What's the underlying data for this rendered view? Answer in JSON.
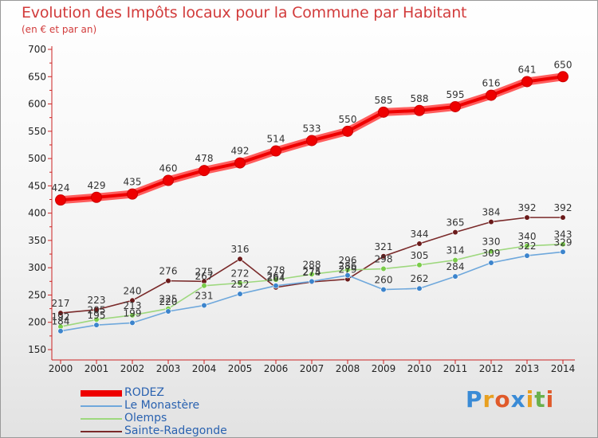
{
  "title": "Evolution des Impôts locaux pour la Commune par Habitant",
  "subtitle": "(en € et par an)",
  "logo": {
    "letters": [
      "P",
      "r",
      "o",
      "x",
      "i",
      "t",
      "i"
    ],
    "colors": [
      "#3a8bd6",
      "#e8a020",
      "#e05a2a",
      "#3a8bd6",
      "#e8a020",
      "#6ab04c",
      "#e05a2a"
    ]
  },
  "chart_data": {
    "type": "line",
    "title": "Evolution des Impôts locaux pour la Commune par Habitant",
    "subtitle": "(en € et par an)",
    "xlabel": "",
    "ylabel": "",
    "x": [
      "2000",
      "2001",
      "2002",
      "2003",
      "2004",
      "2005",
      "2006",
      "2007",
      "2008",
      "2009",
      "2010",
      "2011",
      "2012",
      "2013",
      "2014"
    ],
    "ylim": [
      150,
      700
    ],
    "yticks": [
      "150",
      "200",
      "250",
      "300",
      "350",
      "400",
      "450",
      "500",
      "550",
      "600",
      "650",
      "700"
    ],
    "grid": false,
    "legend": "bottom-left",
    "series": [
      {
        "name": "RODEZ",
        "color": "#ee0000",
        "marker": "#ee0000",
        "values": [
          424,
          429,
          435,
          460,
          478,
          492,
          514,
          533,
          550,
          585,
          588,
          595,
          616,
          641,
          650
        ],
        "labels": [
          "424",
          "429",
          "435",
          "460",
          "478",
          "492",
          "514",
          "533",
          "550",
          "585",
          "588",
          "595",
          "616",
          "641",
          "650"
        ]
      },
      {
        "name": "Le Monastère",
        "color": "#6fa8dc",
        "marker": "#3c84cc",
        "values": [
          184,
          195,
          199,
          220,
          231,
          252,
          267,
          275,
          286,
          260,
          262,
          284,
          309,
          322,
          329
        ],
        "labels": [
          "184",
          "195",
          "199",
          "220",
          "231",
          "252",
          "267",
          "275",
          "286",
          "260",
          "262",
          "284",
          "309",
          "322",
          "329"
        ]
      },
      {
        "name": "Olemps",
        "color": "#9ed87e",
        "marker": "#7acc4a",
        "values": [
          192,
          205,
          213,
          225,
          267,
          272,
          278,
          288,
          296,
          298,
          305,
          314,
          330,
          340,
          343
        ],
        "labels": [
          "192",
          "205",
          "213",
          "225",
          "267",
          "272",
          "278",
          "288",
          "296",
          "298",
          "305",
          "314",
          "330",
          "340",
          "343"
        ]
      },
      {
        "name": "Sainte-Radegonde",
        "color": "#7a2a2a",
        "marker": "#6a1a1a",
        "values": [
          217,
          223,
          240,
          276,
          275,
          316,
          264,
          274,
          279,
          321,
          344,
          365,
          384,
          392,
          392
        ],
        "labels": [
          "217",
          "223",
          "240",
          "276",
          "275",
          "316",
          "264",
          "274",
          "279",
          "321",
          "344",
          "365",
          "384",
          "392",
          "392"
        ]
      }
    ]
  }
}
